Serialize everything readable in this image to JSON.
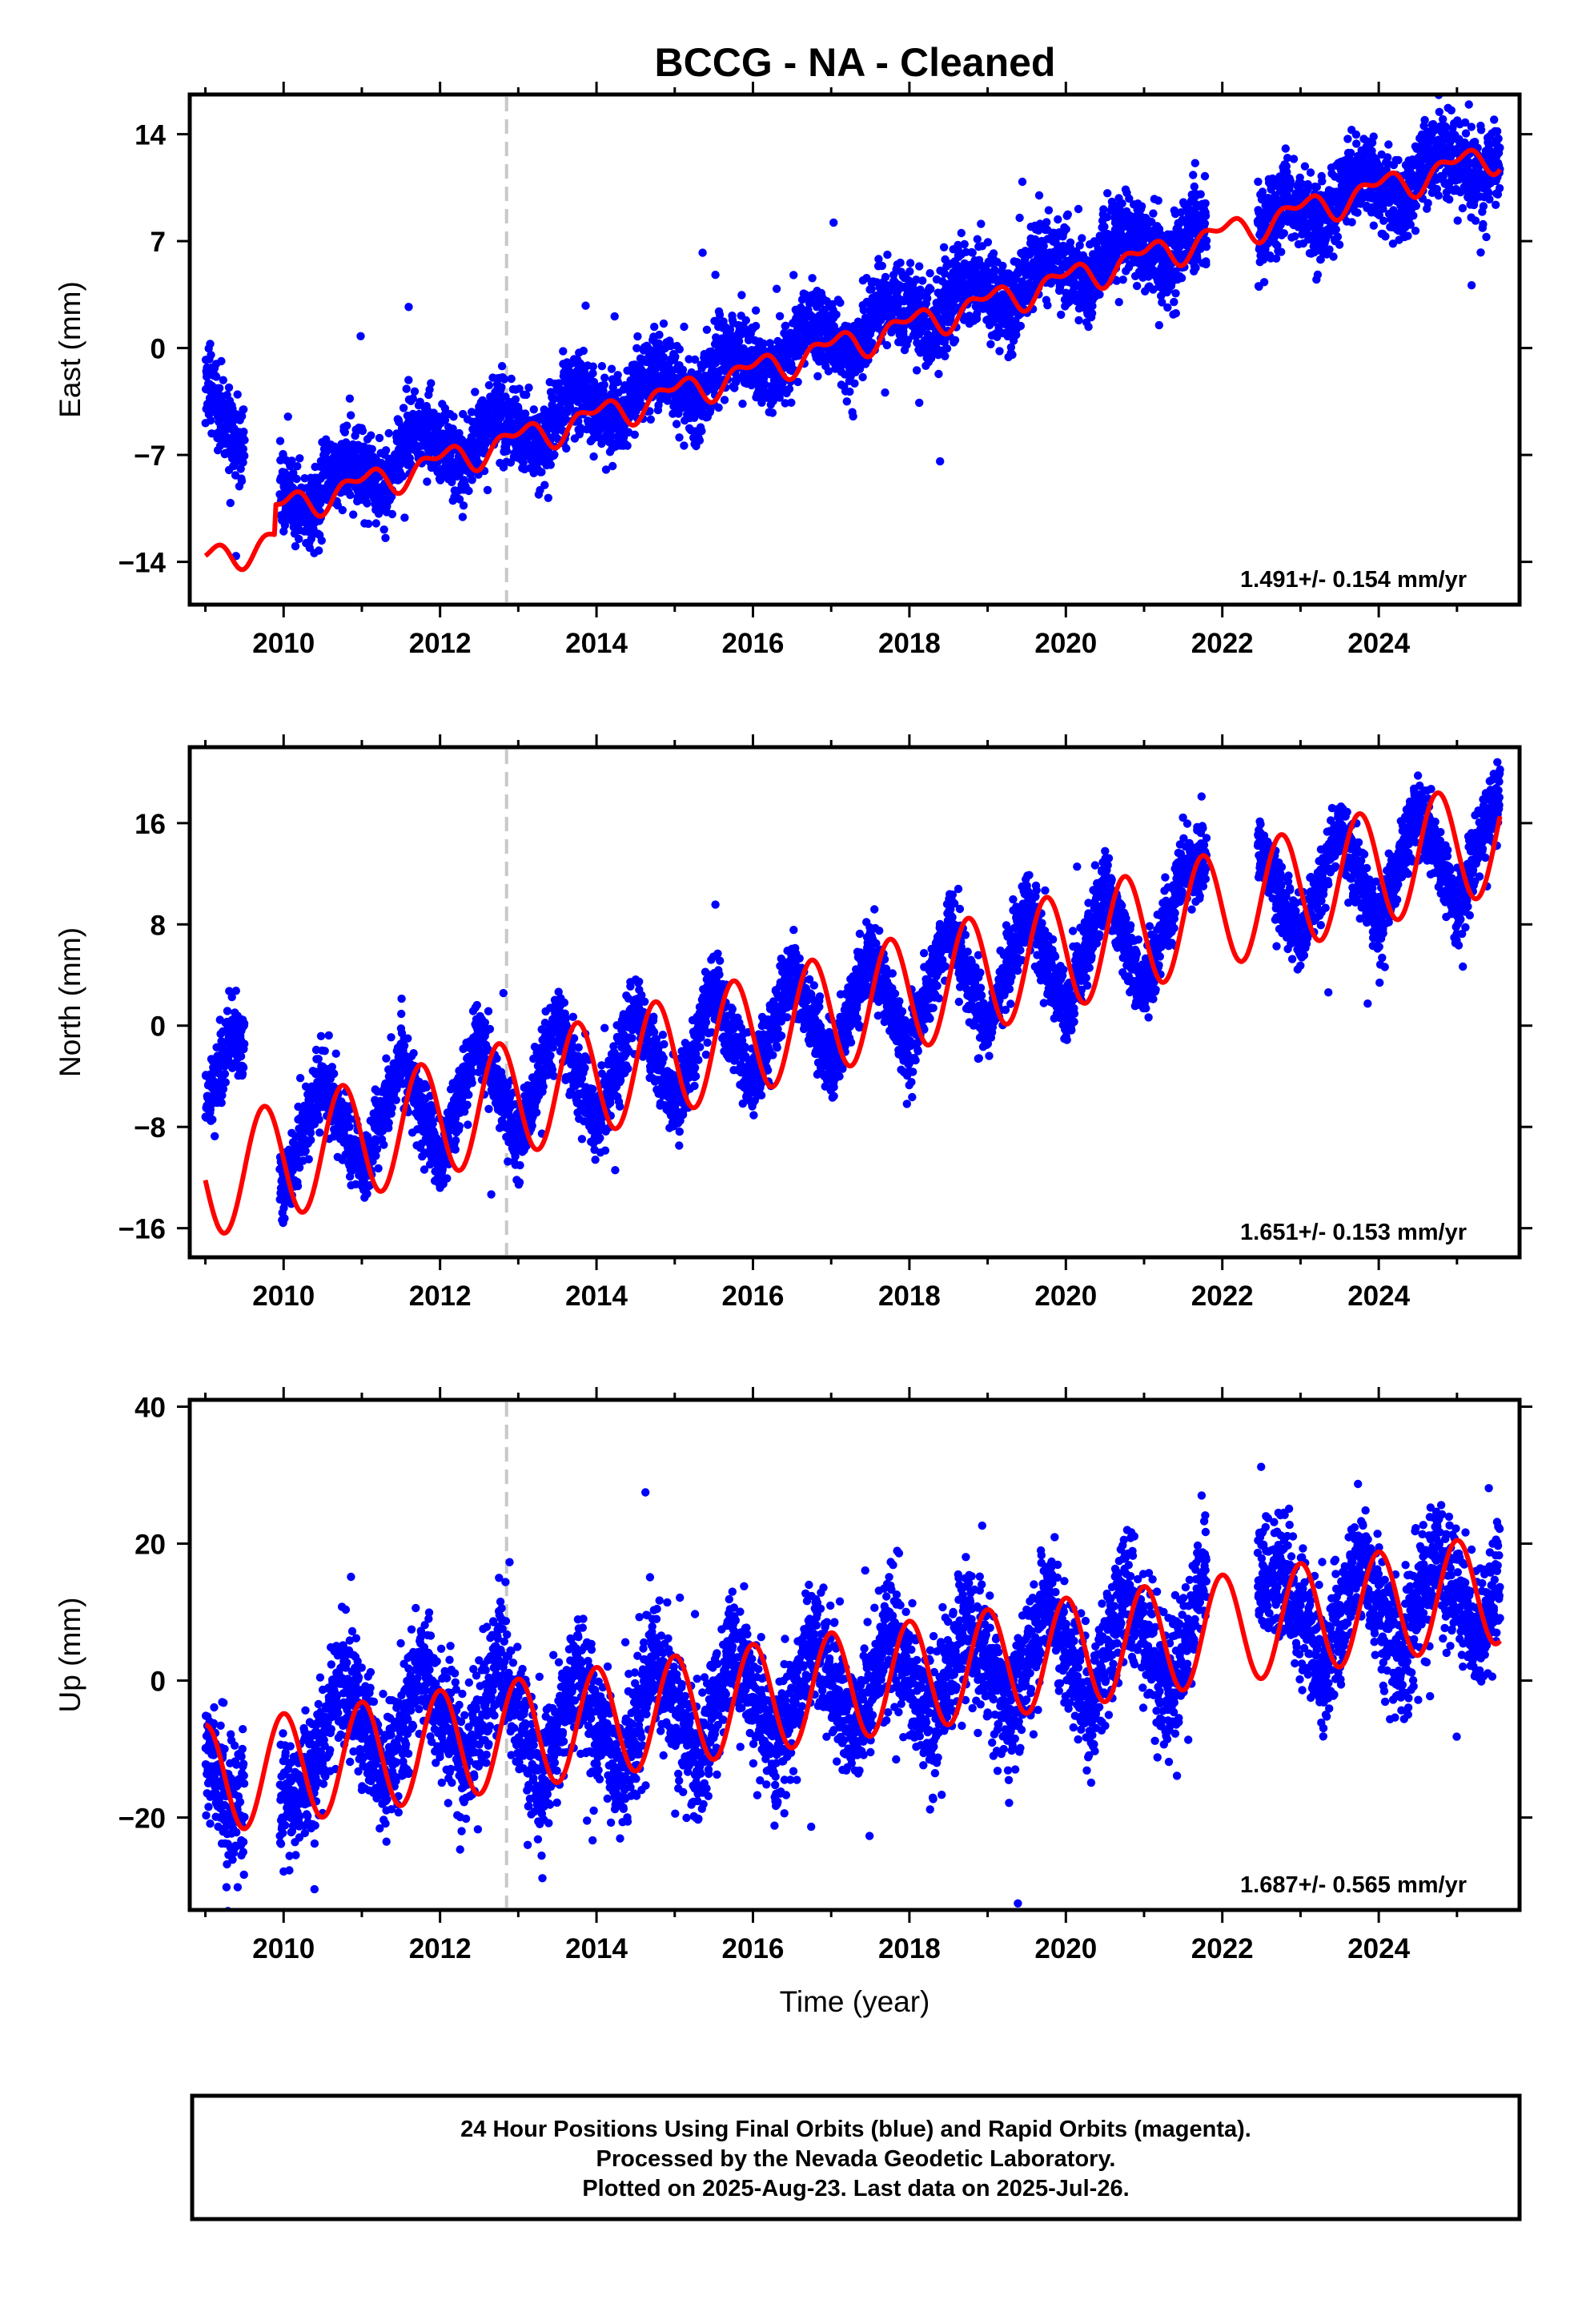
{
  "title": "BCCG  - NA - Cleaned",
  "colors": {
    "final_points": "#0000ff",
    "fit_line": "#ff0000",
    "event_line": "#c8c8c8",
    "frame": "#000000"
  },
  "footer": {
    "line1": "24 Hour Positions Using Final Orbits (blue) and Rapid Orbits (magenta).",
    "line2": "Processed by the Nevada Geodetic Laboratory.",
    "line3": "Plotted on 2025-Aug-23. Last data on 2025-Jul-26."
  },
  "chart_data": [
    {
      "type": "scatter",
      "component": "east",
      "ylabel": "East (mm)",
      "xlabel": "",
      "xlim": [
        2008.8,
        2025.8
      ],
      "ylim": [
        -16.8,
        16.6
      ],
      "x_ticks": [
        2010,
        2012,
        2014,
        2016,
        2018,
        2020,
        2022,
        2024
      ],
      "x_tick_labels": [
        "2010",
        "2012",
        "2014",
        "2016",
        "2018",
        "2020",
        "2022",
        "2024"
      ],
      "y_ticks": [
        -14,
        -7,
        0,
        7,
        14
      ],
      "y_tick_labels": [
        "−14",
        "−7",
        "0",
        "7",
        "14"
      ],
      "event_line_x": 2012.85,
      "rate_text": "1.491+/- 0.154 mm/yr",
      "series": [
        {
          "role": "data",
          "segments": [
            [
              2009.0,
              2009.5
            ],
            [
              2009.95,
              2021.8
            ],
            [
              2022.45,
              2025.55
            ]
          ],
          "x": [
            2009.05,
            2009.3,
            2010.0,
            2010.3,
            2010.55,
            2010.8,
            2011.3,
            2011.6,
            2011.8,
            2012.3,
            2012.6,
            2012.8,
            2013.3,
            2013.6,
            2013.8,
            2014.3,
            2014.6,
            2014.8,
            2015.3,
            2015.6,
            2015.8,
            2016.3,
            2016.6,
            2016.8,
            2017.3,
            2017.6,
            2017.8,
            2018.3,
            2018.6,
            2018.8,
            2019.3,
            2019.6,
            2019.8,
            2020.3,
            2020.6,
            2020.8,
            2021.3,
            2021.6,
            2022.5,
            2022.8,
            2023.3,
            2023.6,
            2023.8,
            2024.3,
            2024.6,
            2024.8,
            2025.3,
            2025.55
          ],
          "y": [
            -2.5,
            -5.5,
            -9.5,
            -11.0,
            -8.5,
            -7.5,
            -9.0,
            -6.0,
            -5.5,
            -7.5,
            -5.0,
            -4.5,
            -6.5,
            -3.5,
            -3.0,
            -5.0,
            -2.0,
            -1.5,
            -3.5,
            -0.5,
            0.0,
            -2.0,
            1.0,
            1.5,
            -0.5,
            2.5,
            3.0,
            1.0,
            4.0,
            4.5,
            2.5,
            5.5,
            6.0,
            4.0,
            7.0,
            7.5,
            5.5,
            8.0,
            7.5,
            10.0,
            8.0,
            11.0,
            11.5,
            9.5,
            12.5,
            13.0,
            11.0,
            12.0
          ],
          "scatter_mm": 1.3
        },
        {
          "role": "fit",
          "start": 2009.0,
          "end": 2025.55,
          "ref_year": 2017.0,
          "offset_mm": 0.0,
          "rate_mm_per_yr": 1.491,
          "annual_amp_mm": 0.8,
          "annual_phase_yr": 0.75,
          "semiannual_amp_mm": 0.5,
          "semiannual_phase_yr": 0.1,
          "steps": [
            {
              "year": 2009.9,
              "mm": 2.0
            }
          ]
        }
      ]
    },
    {
      "type": "scatter",
      "component": "north",
      "ylabel": "North (mm)",
      "xlabel": "",
      "xlim": [
        2008.8,
        2025.8
      ],
      "ylim": [
        -18.3,
        22.0
      ],
      "x_ticks": [
        2010,
        2012,
        2014,
        2016,
        2018,
        2020,
        2022,
        2024
      ],
      "x_tick_labels": [
        "2010",
        "2012",
        "2014",
        "2016",
        "2018",
        "2020",
        "2022",
        "2024"
      ],
      "y_ticks": [
        -16,
        -8,
        0,
        8,
        16
      ],
      "y_tick_labels": [
        "−16",
        "−8",
        "0",
        "8",
        "16"
      ],
      "event_line_x": 2012.85,
      "rate_text": "1.651+/- 0.153 mm/yr",
      "series": [
        {
          "role": "data",
          "segments": [
            [
              2009.0,
              2009.5
            ],
            [
              2009.95,
              2021.8
            ],
            [
              2022.45,
              2025.55
            ]
          ],
          "x": [
            2009.05,
            2009.4,
            2010.0,
            2010.5,
            2011.0,
            2011.5,
            2012.0,
            2012.5,
            2013.0,
            2013.5,
            2014.0,
            2014.5,
            2015.0,
            2015.5,
            2016.0,
            2016.5,
            2017.0,
            2017.5,
            2018.0,
            2018.5,
            2019.0,
            2019.5,
            2020.0,
            2020.5,
            2021.0,
            2021.5,
            2022.5,
            2023.0,
            2023.5,
            2024.0,
            2024.5,
            2025.0,
            2025.55
          ],
          "y": [
            -6.0,
            0.0,
            -13.0,
            -4.0,
            -11.5,
            -2.5,
            -10.5,
            -1.0,
            -9.5,
            0.5,
            -8.0,
            1.5,
            -6.5,
            3.0,
            -5.0,
            4.5,
            -3.5,
            6.0,
            -2.0,
            8.0,
            -0.5,
            9.5,
            1.0,
            11.0,
            3.0,
            12.5,
            14.0,
            6.5,
            15.5,
            8.0,
            17.5,
            9.5,
            19.0
          ],
          "scatter_mm": 1.4
        },
        {
          "role": "fit",
          "start": 2009.0,
          "end": 2025.55,
          "ref_year": 2017.0,
          "offset_mm": 1.0,
          "rate_mm_per_yr": 1.651,
          "annual_amp_mm": 4.6,
          "annual_phase_yr": 0.5,
          "semiannual_amp_mm": 0.0,
          "semiannual_phase_yr": 0.0,
          "steps": []
        }
      ]
    },
    {
      "type": "scatter",
      "component": "up",
      "ylabel": "Up (mm)",
      "xlabel": "Time (year)",
      "xlim": [
        2008.8,
        2025.8
      ],
      "ylim": [
        -33.5,
        41.0
      ],
      "x_ticks": [
        2010,
        2012,
        2014,
        2016,
        2018,
        2020,
        2022,
        2024
      ],
      "x_tick_labels": [
        "2010",
        "2012",
        "2014",
        "2016",
        "2018",
        "2020",
        "2022",
        "2024"
      ],
      "y_ticks": [
        -20,
        0,
        20,
        40
      ],
      "y_tick_labels": [
        "−20",
        "0",
        "20",
        "40"
      ],
      "event_line_x": 2012.85,
      "rate_text": "1.687+/- 0.565 mm/yr",
      "series": [
        {
          "role": "data",
          "segments": [
            [
              2009.0,
              2009.5
            ],
            [
              2009.95,
              2021.8
            ],
            [
              2022.45,
              2025.55
            ]
          ],
          "x": [
            2009.05,
            2009.3,
            2010.3,
            2010.75,
            2011.3,
            2011.75,
            2012.3,
            2012.75,
            2013.3,
            2013.75,
            2014.3,
            2014.75,
            2015.3,
            2015.75,
            2016.3,
            2016.75,
            2017.3,
            2017.75,
            2018.3,
            2018.75,
            2019.3,
            2019.75,
            2020.3,
            2020.75,
            2021.3,
            2021.75,
            2022.75,
            2023.3,
            2023.75,
            2024.3,
            2024.75,
            2025.3,
            2025.55
          ],
          "y": [
            -12.0,
            -18.0,
            -16.0,
            1.0,
            -14.5,
            2.5,
            -13.0,
            4.0,
            -15.5,
            1.5,
            -14.0,
            3.5,
            -12.5,
            5.0,
            -11.0,
            6.5,
            -9.0,
            8.0,
            -7.0,
            10.0,
            -5.5,
            12.0,
            -4.0,
            13.5,
            -2.5,
            15.0,
            16.0,
            1.5,
            18.5,
            3.0,
            19.5,
            5.0,
            16.0
          ],
          "scatter_mm": 4.5
        },
        {
          "role": "fit",
          "start": 2009.0,
          "end": 2025.55,
          "ref_year": 2017.0,
          "offset_mm": -1.0,
          "rate_mm_per_yr": 1.687,
          "annual_amp_mm": 8.0,
          "annual_phase_yr": 0.75,
          "semiannual_amp_mm": 0.0,
          "semiannual_phase_yr": 0.0,
          "steps": []
        }
      ]
    }
  ]
}
